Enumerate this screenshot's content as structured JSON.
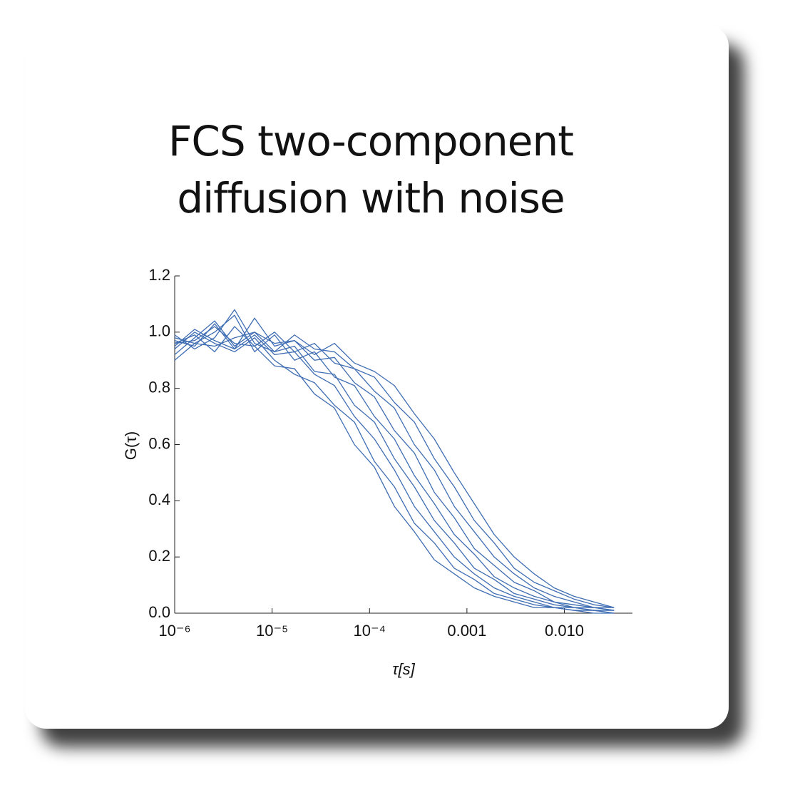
{
  "chart_data": {
    "type": "line",
    "title": "FCS two-component diffusion with noise",
    "xlabel": "τ[s]",
    "ylabel": "G(τ)",
    "xscale": "log",
    "color": "#3f6db3",
    "x": [
      1e-06,
      1.603e-06,
      2.57e-06,
      4.121e-06,
      6.607e-06,
      1.059e-05,
      1.698e-05,
      2.723e-05,
      4.365e-05,
      6.998e-05,
      0.0001122,
      0.0001799,
      0.0002884,
      0.0004624,
      0.0007413,
      0.001189,
      0.001905,
      0.003055,
      0.004898,
      0.007852,
      0.01259,
      0.02018,
      0.03236
    ],
    "series": [
      {
        "values": [
          0.96,
          0.99,
          0.93,
          1.02,
          0.95,
          0.88,
          0.87,
          0.78,
          0.73,
          0.6,
          0.52,
          0.38,
          0.29,
          0.19,
          0.14,
          0.09,
          0.06,
          0.04,
          0.02,
          0.02,
          0.01,
          0.0,
          0.0
        ]
      },
      {
        "values": [
          0.94,
          1.0,
          0.96,
          0.93,
          0.98,
          0.9,
          0.85,
          0.82,
          0.74,
          0.68,
          0.54,
          0.45,
          0.32,
          0.25,
          0.16,
          0.12,
          0.07,
          0.05,
          0.03,
          0.02,
          0.01,
          0.01,
          0.0
        ]
      },
      {
        "values": [
          0.97,
          0.95,
          1.03,
          0.94,
          0.99,
          0.92,
          0.93,
          0.85,
          0.81,
          0.7,
          0.62,
          0.51,
          0.38,
          0.29,
          0.2,
          0.14,
          0.09,
          0.06,
          0.04,
          0.02,
          0.02,
          0.01,
          0.0
        ]
      },
      {
        "values": [
          0.92,
          0.98,
          1.04,
          0.95,
          1.0,
          0.93,
          0.95,
          0.86,
          0.85,
          0.74,
          0.68,
          0.55,
          0.45,
          0.33,
          0.25,
          0.16,
          0.12,
          0.07,
          0.05,
          0.03,
          0.02,
          0.01,
          0.01
        ]
      },
      {
        "values": [
          0.98,
          0.96,
          1.0,
          1.06,
          0.93,
          0.99,
          0.9,
          0.93,
          0.84,
          0.81,
          0.7,
          0.62,
          0.49,
          0.39,
          0.28,
          0.21,
          0.13,
          0.09,
          0.06,
          0.04,
          0.02,
          0.02,
          0.01
        ]
      },
      {
        "values": [
          0.95,
          1.01,
          0.97,
          0.94,
          1.05,
          0.95,
          0.97,
          0.9,
          0.91,
          0.82,
          0.77,
          0.65,
          0.57,
          0.43,
          0.34,
          0.23,
          0.17,
          0.11,
          0.08,
          0.04,
          0.03,
          0.02,
          0.01
        ]
      },
      {
        "values": [
          0.96,
          0.97,
          1.02,
          0.96,
          0.95,
          1.0,
          0.93,
          0.96,
          0.89,
          0.87,
          0.79,
          0.73,
          0.6,
          0.51,
          0.38,
          0.29,
          0.2,
          0.14,
          0.09,
          0.06,
          0.04,
          0.02,
          0.02
        ]
      },
      {
        "values": [
          0.99,
          0.94,
          0.98,
          1.08,
          0.96,
          0.93,
          0.99,
          0.94,
          0.93,
          0.87,
          0.84,
          0.75,
          0.68,
          0.55,
          0.45,
          0.33,
          0.25,
          0.16,
          0.11,
          0.08,
          0.05,
          0.03,
          0.02
        ]
      },
      {
        "values": [
          0.9,
          0.96,
          0.95,
          0.98,
          1.0,
          0.96,
          0.97,
          0.92,
          0.96,
          0.89,
          0.86,
          0.81,
          0.71,
          0.62,
          0.5,
          0.39,
          0.28,
          0.2,
          0.14,
          0.09,
          0.06,
          0.04,
          0.02
        ]
      }
    ],
    "xlim": [
      1e-06,
      0.05
    ],
    "xticks": [
      {
        "value": 1e-06,
        "label": "10⁻⁶"
      },
      {
        "value": 1e-05,
        "label": "10⁻⁵"
      },
      {
        "value": 0.0001,
        "label": "10⁻⁴"
      },
      0.001,
      {
        "value": 0.01,
        "label": "0.010"
      }
    ],
    "ylim": [
      0,
      1.2
    ],
    "yticks": [
      {
        "value": 0,
        "label": "0.0"
      },
      0.2,
      0.4,
      0.6,
      0.8,
      {
        "value": 1,
        "label": "1.0"
      },
      1.2
    ]
  }
}
